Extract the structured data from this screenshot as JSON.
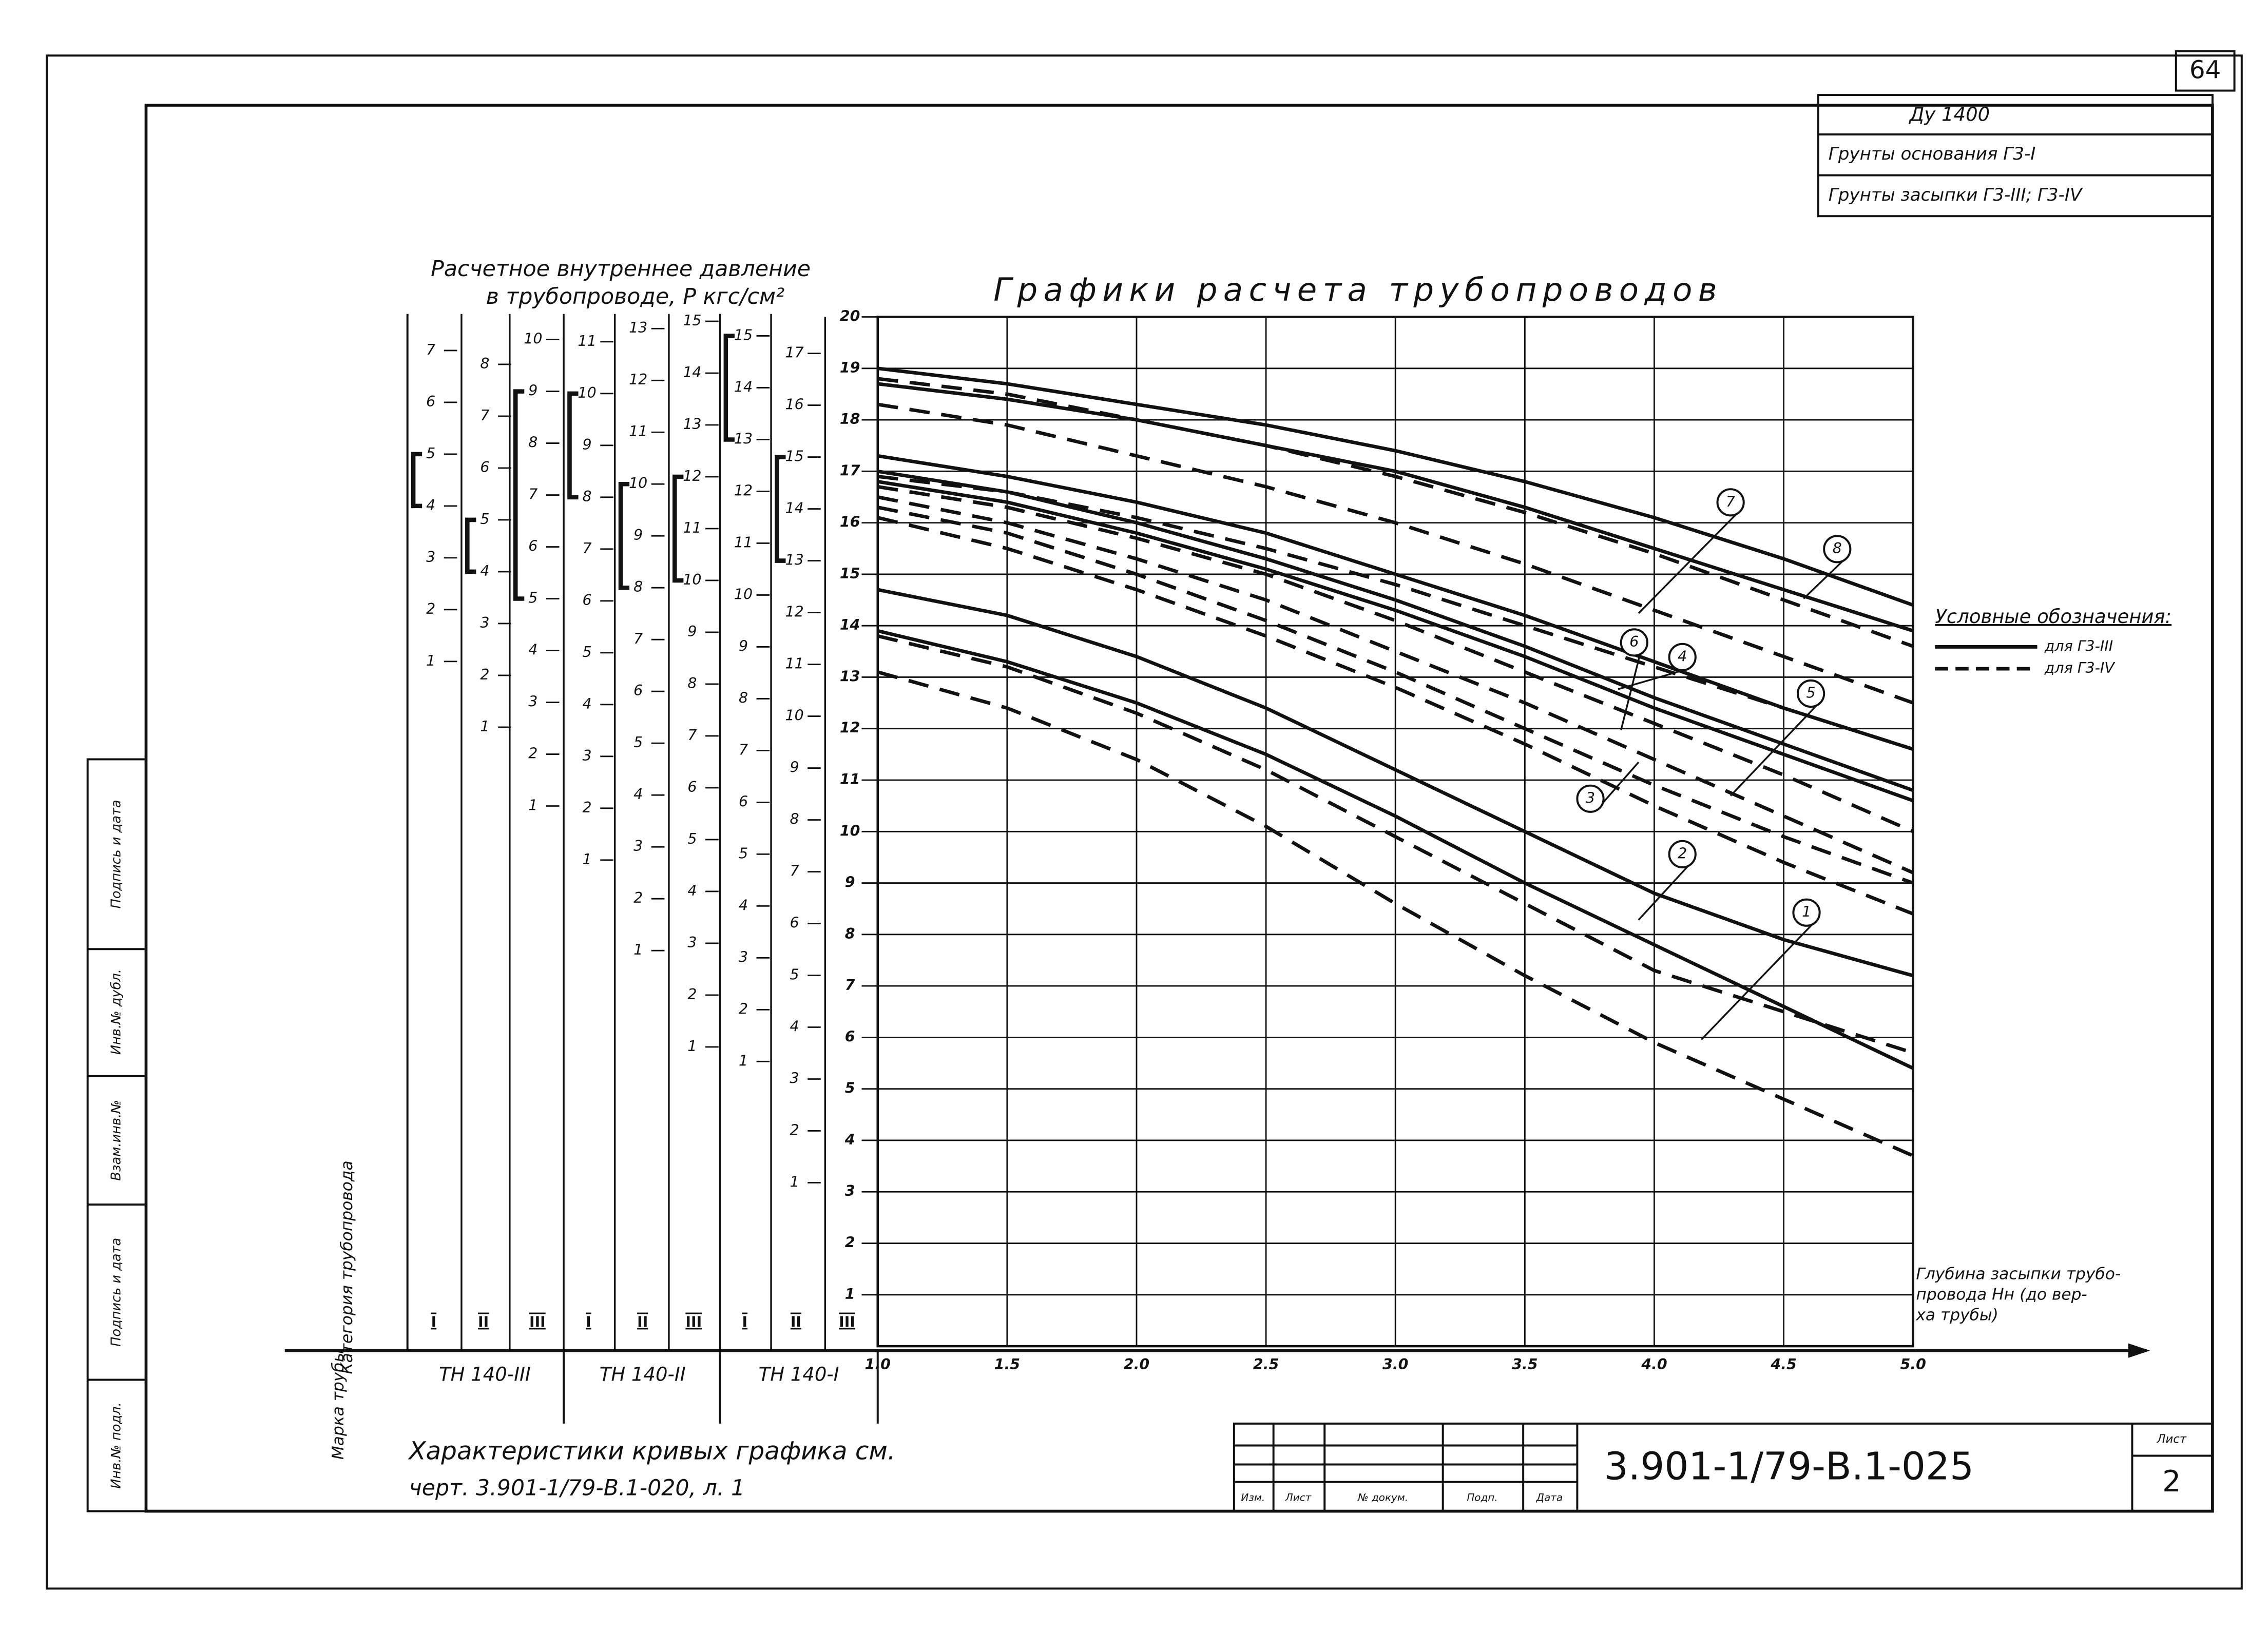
{
  "page_number": "64",
  "stamp": {
    "diameter": "Ду 1400",
    "base_soil": "Грунты основания Г3-I",
    "fill_soil": "Грунты засыпки Г3-III; Г3-IV"
  },
  "chart_data": {
    "type": "line",
    "title": "Графики расчета трубопроводов",
    "x_label": [
      "Глубина засыпки трубо-",
      "провода Нн (до вер-",
      "ха трубы)"
    ],
    "x": [
      1,
      1.5,
      2,
      2.5,
      3,
      3.5,
      4,
      4.5,
      5
    ],
    "xlim": [
      1,
      5
    ],
    "xticks": [
      {
        "value": 1,
        "label": "1.0"
      },
      1.5,
      {
        "value": 2,
        "label": "2.0"
      },
      2.5,
      {
        "value": 3,
        "label": "3.0"
      },
      3.5,
      {
        "value": 4,
        "label": "4.0"
      },
      4.5,
      {
        "value": 5,
        "label": "5.0"
      }
    ],
    "ylim": [
      0,
      20
    ],
    "yticks": [
      1,
      2,
      3,
      4,
      5,
      6,
      7,
      8,
      9,
      10,
      11,
      12,
      13,
      14,
      15,
      16,
      17,
      18,
      19,
      20
    ],
    "grid": true,
    "series": [
      {
        "color": "#111",
        "dash": false,
        "values": [
          19.0,
          18.7,
          18.3,
          17.9,
          17.4,
          16.8,
          16.1,
          15.3,
          14.4
        ]
      },
      {
        "color": "#111",
        "dash": false,
        "values": [
          18.7,
          18.4,
          18.0,
          17.5,
          17.0,
          16.3,
          15.5,
          14.7,
          13.9
        ]
      },
      {
        "color": "#111",
        "dash": true,
        "values": [
          18.8,
          18.5,
          18.0,
          17.5,
          16.9,
          16.2,
          15.4,
          14.5,
          13.6
        ]
      },
      {
        "color": "#111",
        "dash": true,
        "values": [
          18.3,
          17.9,
          17.3,
          16.7,
          16.0,
          15.2,
          14.3,
          13.4,
          12.5
        ]
      },
      {
        "color": "#111",
        "dash": false,
        "values": [
          17.3,
          16.9,
          16.4,
          15.8,
          15.0,
          14.2,
          13.3,
          12.4,
          11.6
        ]
      },
      {
        "color": "#111",
        "dash": false,
        "values": [
          17.0,
          16.6,
          16.0,
          15.3,
          14.5,
          13.6,
          12.6,
          11.7,
          10.8
        ]
      },
      {
        "color": "#111",
        "dash": false,
        "values": [
          16.8,
          16.4,
          15.8,
          15.1,
          14.3,
          13.4,
          12.4,
          11.5,
          10.6
        ]
      },
      {
        "color": "#111",
        "dash": true,
        "values": [
          16.9,
          16.6,
          16.1,
          15.5,
          14.8,
          14.0,
          13.2,
          12.4,
          11.6
        ]
      },
      {
        "color": "#111",
        "dash": true,
        "values": [
          16.7,
          16.3,
          15.7,
          15.0,
          14.1,
          13.1,
          12.1,
          11.1,
          10.0
        ]
      },
      {
        "color": "#111",
        "dash": true,
        "values": [
          16.5,
          16.0,
          15.3,
          14.5,
          13.5,
          12.5,
          11.4,
          10.3,
          9.2
        ]
      },
      {
        "color": "#111",
        "dash": true,
        "values": [
          16.1,
          15.5,
          14.7,
          13.8,
          12.8,
          11.7,
          10.5,
          9.4,
          8.4
        ]
      },
      {
        "color": "#111",
        "dash": false,
        "values": [
          14.7,
          14.2,
          13.4,
          12.4,
          11.2,
          10.0,
          8.8,
          7.9,
          7.2
        ]
      },
      {
        "color": "#111",
        "dash": false,
        "values": [
          13.9,
          13.3,
          12.5,
          11.5,
          10.3,
          9.0,
          7.8,
          6.6,
          5.4
        ]
      },
      {
        "color": "#111",
        "dash": true,
        "values": [
          13.8,
          13.2,
          12.3,
          11.2,
          9.9,
          8.6,
          7.3,
          6.5,
          5.7
        ]
      },
      {
        "color": "#111",
        "dash": true,
        "values": [
          13.1,
          12.4,
          11.4,
          10.1,
          8.6,
          7.2,
          5.9,
          4.8,
          3.7
        ]
      },
      {
        "color": "#111",
        "dash": true,
        "values": [
          16.3,
          15.8,
          15.0,
          14.1,
          13.1,
          12.0,
          10.9,
          9.9,
          9.0
        ]
      }
    ],
    "curve_labels": [
      "1",
      "2",
      "3",
      "4",
      "5",
      "6",
      "7",
      "8"
    ],
    "legend": {
      "title": "Условные обозначения:",
      "items": [
        {
          "label": "для Г3-III",
          "dash": false
        },
        {
          "label": "для Г3-IV",
          "dash": true
        }
      ]
    }
  },
  "pressure_scales": {
    "title": [
      "Расчетное внутреннее давление",
      "в трубопроводе, P кгс/см²"
    ],
    "category_header": "Категория трубопровода",
    "brand_header": "Марка трубы",
    "categories": [
      "I",
      "II",
      "III",
      "I",
      "II",
      "III",
      "I",
      "II",
      "III"
    ],
    "brands": [
      "TH 140-III",
      "TH 140-II",
      "TH 140-I"
    ],
    "scales": [
      {
        "ticks": [
          1,
          2,
          3,
          4,
          5,
          6,
          7
        ],
        "bracket": [
          4,
          5
        ]
      },
      {
        "ticks": [
          1,
          2,
          3,
          4,
          5,
          6,
          7,
          8
        ],
        "bracket": [
          4,
          5
        ]
      },
      {
        "ticks": [
          1,
          2,
          3,
          4,
          5,
          6,
          7,
          8,
          9,
          10
        ],
        "bracket": [
          5,
          9
        ]
      },
      {
        "ticks": [
          1,
          2,
          3,
          4,
          5,
          6,
          7,
          8,
          9,
          10,
          11
        ],
        "bracket": [
          8,
          10
        ]
      },
      {
        "ticks": [
          1,
          2,
          3,
          4,
          5,
          6,
          7,
          8,
          9,
          10,
          11,
          12,
          13
        ],
        "bracket": [
          8,
          10
        ]
      },
      {
        "ticks": [
          1,
          2,
          3,
          4,
          5,
          6,
          7,
          8,
          9,
          10,
          11,
          12,
          13,
          14,
          15
        ],
        "bracket": [
          10,
          12
        ]
      },
      {
        "ticks": [
          1,
          2,
          3,
          4,
          5,
          6,
          7,
          8,
          9,
          10,
          11,
          12,
          13,
          14,
          15
        ],
        "bracket": [
          13,
          15
        ]
      },
      {
        "ticks": [
          1,
          2,
          3,
          4,
          5,
          6,
          7,
          8,
          9,
          10,
          11,
          12,
          13,
          14,
          15,
          16,
          17
        ],
        "bracket": [
          13,
          15
        ]
      }
    ]
  },
  "note": [
    "Характеристики кривых графика см.",
    "черт. 3.901-1/79-В.1-020, л. 1"
  ],
  "title_block": {
    "headers": [
      "Изм.",
      "Лист",
      "№ докум.",
      "Подп.",
      "Дата"
    ],
    "code": "3.901-1/79-В.1-025",
    "sheet_label": "Лист",
    "sheet": "2"
  },
  "side_stamp": [
    "Подпись и дата",
    "Инв.№ дубл.",
    "Взам.инв.№",
    "Подпись и дата",
    "Инв.№ подл."
  ]
}
